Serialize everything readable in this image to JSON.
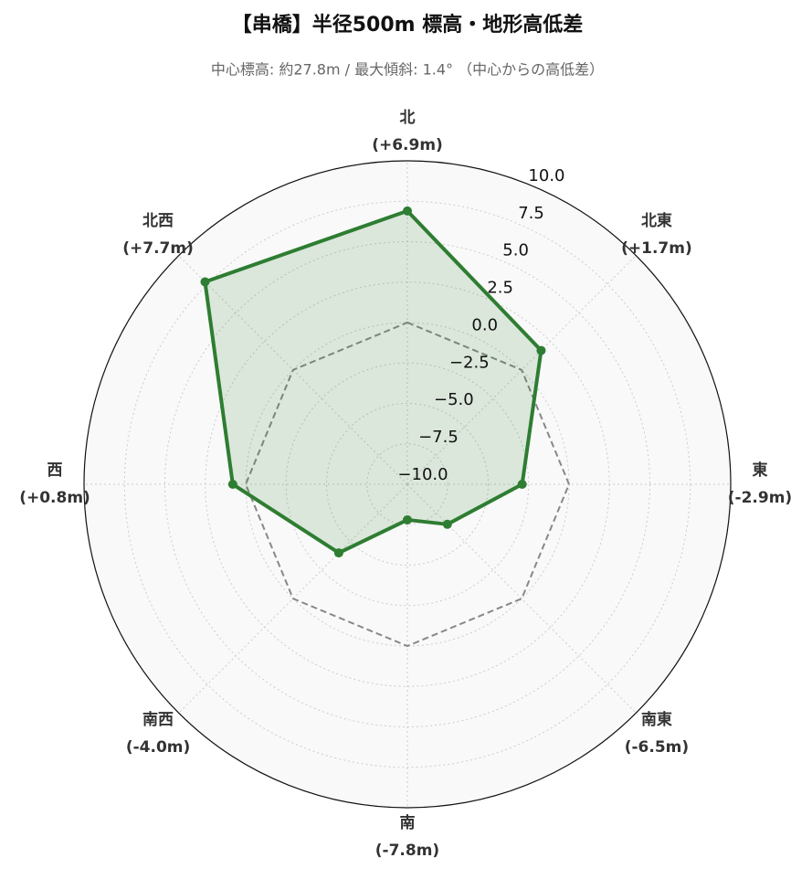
{
  "chart_data": {
    "type": "radar",
    "title": "【串橋】半径500m 標高・地形高低差",
    "subtitle": "中心標高: 約27.8m / 最大傾斜: 1.4° （中心からの高低差）",
    "categories": [
      "北",
      "北東",
      "東",
      "南東",
      "南",
      "南西",
      "西",
      "北西"
    ],
    "series": [
      {
        "color": "#2e7d32",
        "values": [
          6.9,
          1.7,
          -2.9,
          -6.5,
          -7.8,
          -4.0,
          0.8,
          7.7
        ],
        "value_labels": [
          "(+6.9m)",
          "(+1.7m)",
          "(-2.9m)",
          "(-6.5m)",
          "(-7.8m)",
          "(-4.0m)",
          "(+0.8m)",
          "(+7.7m)"
        ]
      }
    ],
    "reference_line": {
      "value": 0,
      "color": "#888888"
    },
    "rlim": [
      -10,
      10
    ],
    "rticks": [
      {
        "value": -10,
        "label": "−10.0"
      },
      {
        "value": -7.5,
        "label": "−7.5"
      },
      {
        "value": -5,
        "label": "−5.0"
      },
      {
        "value": -2.5,
        "label": "−2.5"
      },
      {
        "value": 0,
        "label": "0.0"
      },
      {
        "value": 2.5,
        "label": "2.5"
      },
      {
        "value": 5,
        "label": "5.0"
      },
      {
        "value": 7.5,
        "label": "7.5"
      },
      {
        "value": 10,
        "label": "10.0"
      }
    ],
    "grid": true
  }
}
